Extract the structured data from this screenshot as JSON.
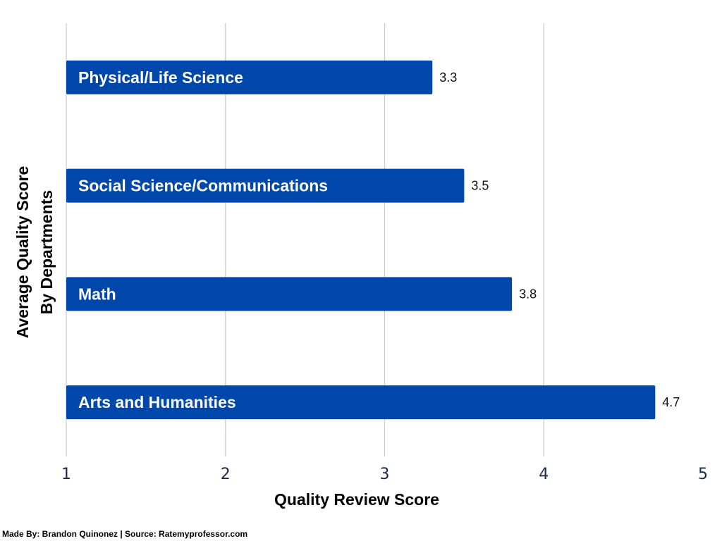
{
  "chart_data": {
    "type": "bar",
    "orientation": "horizontal",
    "categories": [
      "Physical/Life Science",
      "Social Science/Communications",
      "Math",
      "Arts and Humanities"
    ],
    "values": [
      3.3,
      3.5,
      3.8,
      4.7
    ],
    "value_labels": [
      "3.3",
      "3.5",
      "3.8",
      "4.7"
    ],
    "xlabel": "Quality Review Score",
    "ylabel_lines": [
      "Average Quality Score",
      "By  Departments"
    ],
    "xlim": [
      1,
      5
    ],
    "xticks": [
      "1",
      "2",
      "3",
      "4",
      "5"
    ],
    "grid": true,
    "bar_color": "#0047ab"
  },
  "footer": "Made By: Brandon Quinonez | Source: Ratemyprofessor.com"
}
